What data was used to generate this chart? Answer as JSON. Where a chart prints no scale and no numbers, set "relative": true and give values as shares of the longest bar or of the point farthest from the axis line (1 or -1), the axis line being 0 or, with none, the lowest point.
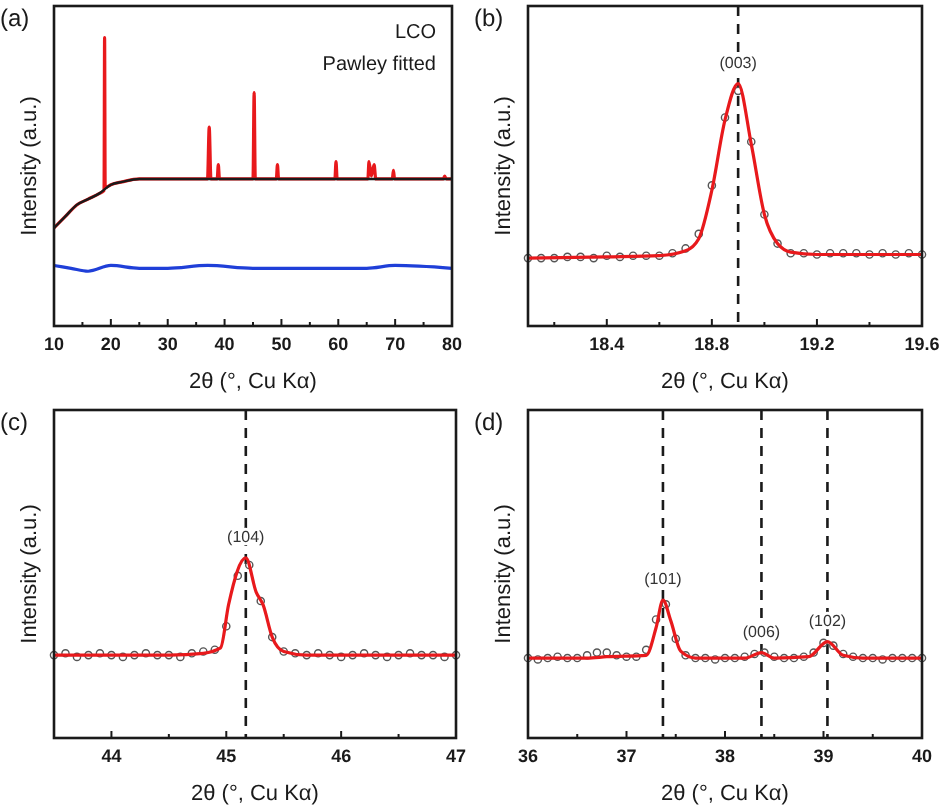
{
  "chart_data": [
    {
      "type": "line",
      "title": "(a)",
      "xlabel": "2θ (°, Cu Kα)",
      "ylabel": "Intensity (a.u.)",
      "relative": true,
      "tick_labels": "x",
      "xlim": [
        10,
        80
      ],
      "xticks": [
        10,
        {
          "value": 15,
          "label": null
        },
        20,
        {
          "value": 25,
          "label": null
        },
        30,
        {
          "value": 35,
          "label": null
        },
        40,
        {
          "value": 45,
          "label": null
        },
        50,
        {
          "value": 55,
          "label": null
        },
        60,
        {
          "value": 65,
          "label": null
        },
        70,
        {
          "value": 75,
          "label": null
        },
        80
      ],
      "annotations": [
        "LCO",
        "Pawley fitted"
      ],
      "series": [
        {
          "type": "line",
          "color": "#e8191c",
          "x": [
            10,
            12,
            14,
            16,
            18,
            18.8,
            18.9,
            19.0,
            20,
            22,
            25,
            30,
            37.0,
            37.3,
            37.6,
            38.7,
            38.9,
            39.1,
            45.0,
            45.2,
            45.4,
            49.1,
            49.3,
            49.5,
            59.4,
            59.6,
            59.8,
            65.2,
            65.4,
            65.8,
            66.3,
            66.6,
            69.5,
            69.7,
            69.9,
            78.5,
            78.7,
            79,
            80
          ],
          "values": [
            0.34,
            0.38,
            0.42,
            0.44,
            0.46,
            0.47,
            1,
            0.48,
            0.49,
            0.5,
            0.51,
            0.51,
            0.51,
            0.69,
            0.51,
            0.51,
            0.56,
            0.51,
            0.51,
            0.81,
            0.51,
            0.51,
            0.56,
            0.51,
            0.51,
            0.57,
            0.51,
            0.51,
            0.57,
            0.52,
            0.56,
            0.51,
            0.51,
            0.54,
            0.51,
            0.51,
            0.52,
            0.51,
            0.51
          ]
        },
        {
          "type": "line",
          "color": "#1a1a1a",
          "x": [
            10,
            12,
            14,
            16,
            18,
            20,
            22,
            25,
            30,
            40,
            50,
            60,
            70,
            80
          ],
          "values": [
            0.34,
            0.38,
            0.42,
            0.44,
            0.46,
            0.49,
            0.5,
            0.51,
            0.51,
            0.51,
            0.51,
            0.51,
            0.51,
            0.51
          ]
        },
        {
          "type": "line",
          "color": "#1f3fd8",
          "x": [
            10,
            13,
            16,
            20,
            25,
            30,
            37,
            45,
            55,
            65,
            70,
            80
          ],
          "values": [
            0.21,
            0.2,
            0.19,
            0.21,
            0.2,
            0.2,
            0.21,
            0.2,
            0.2,
            0.2,
            0.21,
            0.2
          ]
        }
      ]
    },
    {
      "type": "line",
      "title": "(b)",
      "xlabel": "2θ (°, Cu Kα)",
      "ylabel": "Intensity (a.u.)",
      "relative": true,
      "tick_labels": "x",
      "xlim": [
        18.1,
        19.6
      ],
      "xticks": [
        {
          "value": 18.2,
          "label": null
        },
        18.4,
        {
          "value": 18.6,
          "label": null
        },
        18.8,
        {
          "value": 19.0,
          "label": null
        },
        19.2,
        {
          "value": 19.4,
          "label": null
        },
        19.6
      ],
      "ref_lines": [
        {
          "axis": "x",
          "value": 18.9,
          "line_style": "dashed",
          "color": "#1a1a1a"
        }
      ],
      "annotations": [
        {
          "text": "(003)",
          "x": 18.9,
          "y": 1
        }
      ],
      "series": [
        {
          "type": "scatter",
          "marker": "circle",
          "color": "#555555",
          "x": [
            18.1,
            18.15,
            18.2,
            18.25,
            18.3,
            18.35,
            18.4,
            18.45,
            18.5,
            18.55,
            18.6,
            18.65,
            18.7,
            18.75,
            18.8,
            18.85,
            18.9,
            18.95,
            19.0,
            19.05,
            19.1,
            19.15,
            19.2,
            19.25,
            19.3,
            19.35,
            19.4,
            19.45,
            19.5,
            19.55,
            19.6
          ],
          "values": [
            0.28,
            0.28,
            0.28,
            0.285,
            0.285,
            0.28,
            0.29,
            0.285,
            0.29,
            0.29,
            0.29,
            0.3,
            0.32,
            0.38,
            0.58,
            0.86,
            0.97,
            0.76,
            0.46,
            0.34,
            0.3,
            0.3,
            0.295,
            0.3,
            0.3,
            0.3,
            0.295,
            0.3,
            0.295,
            0.3,
            0.295
          ]
        },
        {
          "type": "line",
          "color": "#e8191c",
          "x": [
            18.1,
            18.4,
            18.6,
            18.7,
            18.75,
            18.8,
            18.85,
            18.9,
            18.95,
            19.0,
            19.05,
            19.1,
            19.2,
            19.6
          ],
          "values": [
            0.28,
            0.285,
            0.29,
            0.31,
            0.36,
            0.56,
            0.85,
            1,
            0.75,
            0.46,
            0.34,
            0.305,
            0.295,
            0.295
          ]
        }
      ]
    },
    {
      "type": "line",
      "title": "(c)",
      "xlabel": "2θ (°, Cu Kα)",
      "ylabel": "Intensity (a.u.)",
      "relative": true,
      "tick_labels": "x",
      "xlim": [
        43.5,
        47
      ],
      "xticks": [
        44,
        {
          "value": 44.5,
          "label": null
        },
        45,
        {
          "value": 45.5,
          "label": null
        },
        46,
        {
          "value": 46.5,
          "label": null
        },
        47
      ],
      "ref_lines": [
        {
          "axis": "x",
          "value": 45.17,
          "line_style": "dashed",
          "color": "#1a1a1a"
        }
      ],
      "annotations": [
        {
          "text": "(104)",
          "x": 45.17,
          "y": 1
        }
      ],
      "series": [
        {
          "type": "scatter",
          "marker": "circle",
          "color": "#555555",
          "x": [
            43.5,
            43.6,
            43.7,
            43.8,
            43.9,
            44.0,
            44.1,
            44.2,
            44.3,
            44.4,
            44.5,
            44.6,
            44.7,
            44.8,
            44.9,
            45.0,
            45.1,
            45.2,
            45.3,
            45.4,
            45.5,
            45.6,
            45.7,
            45.8,
            45.9,
            46.0,
            46.1,
            46.2,
            46.3,
            46.4,
            46.5,
            46.6,
            46.7,
            46.8,
            46.9,
            47.0
          ],
          "values": [
            0.46,
            0.47,
            0.45,
            0.46,
            0.47,
            0.46,
            0.45,
            0.46,
            0.47,
            0.46,
            0.46,
            0.45,
            0.47,
            0.48,
            0.49,
            0.62,
            0.9,
            0.96,
            0.76,
            0.56,
            0.48,
            0.47,
            0.46,
            0.47,
            0.46,
            0.45,
            0.46,
            0.47,
            0.46,
            0.45,
            0.46,
            0.47,
            0.46,
            0.46,
            0.45,
            0.46
          ]
        },
        {
          "type": "line",
          "color": "#e8191c",
          "x": [
            43.5,
            44.5,
            44.8,
            44.95,
            45.02,
            45.17,
            45.26,
            45.32,
            45.4,
            45.5,
            45.7,
            47
          ],
          "values": [
            0.46,
            0.46,
            0.47,
            0.5,
            0.74,
            1,
            0.81,
            0.74,
            0.56,
            0.48,
            0.46,
            0.46
          ]
        }
      ]
    },
    {
      "type": "line",
      "title": "(d)",
      "xlabel": "2θ (°, Cu Kα)",
      "ylabel": "Intensity (a.u.)",
      "relative": true,
      "tick_labels": "x",
      "xlim": [
        36,
        40
      ],
      "xticks": [
        36,
        {
          "value": 36.5,
          "label": null
        },
        37,
        {
          "value": 37.5,
          "label": null
        },
        38,
        {
          "value": 38.5,
          "label": null
        },
        39,
        {
          "value": 39.5,
          "label": null
        },
        40
      ],
      "ref_lines": [
        {
          "axis": "x",
          "value": 37.37,
          "line_style": "dashed",
          "color": "#1a1a1a"
        },
        {
          "axis": "x",
          "value": 38.37,
          "line_style": "dashed",
          "color": "#1a1a1a"
        },
        {
          "axis": "x",
          "value": 39.04,
          "line_style": "dashed",
          "color": "#1a1a1a"
        }
      ],
      "annotations": [
        {
          "text": "(101)",
          "x": 37.37,
          "y": 1
        },
        {
          "text": "(006)",
          "x": 38.37,
          "y": 0.62
        },
        {
          "text": "(102)",
          "x": 39.04,
          "y": 0.7
        }
      ],
      "series": [
        {
          "type": "scatter",
          "marker": "circle",
          "color": "#555555",
          "x": [
            36.0,
            36.1,
            36.2,
            36.3,
            36.4,
            36.5,
            36.6,
            36.7,
            36.8,
            36.9,
            37.0,
            37.1,
            37.2,
            37.3,
            37.4,
            37.5,
            37.6,
            37.7,
            37.8,
            37.9,
            38.0,
            38.1,
            38.2,
            38.3,
            38.4,
            38.5,
            38.6,
            38.7,
            38.8,
            38.9,
            39.0,
            39.1,
            39.2,
            39.3,
            39.4,
            39.5,
            39.6,
            39.7,
            39.8,
            39.9,
            40.0
          ],
          "values": [
            0.58,
            0.57,
            0.58,
            0.59,
            0.58,
            0.58,
            0.6,
            0.62,
            0.62,
            0.6,
            0.59,
            0.59,
            0.64,
            0.86,
            0.97,
            0.72,
            0.6,
            0.58,
            0.58,
            0.57,
            0.58,
            0.58,
            0.59,
            0.61,
            0.62,
            0.59,
            0.58,
            0.58,
            0.59,
            0.62,
            0.69,
            0.67,
            0.61,
            0.59,
            0.58,
            0.58,
            0.57,
            0.58,
            0.58,
            0.58,
            0.58
          ]
        },
        {
          "type": "line",
          "color": "#e8191c",
          "x": [
            36,
            36.6,
            36.8,
            37.2,
            37.3,
            37.37,
            37.45,
            37.55,
            37.7,
            38.2,
            38.37,
            38.5,
            38.85,
            39.04,
            39.2,
            39.4,
            40
          ],
          "values": [
            0.58,
            0.58,
            0.59,
            0.6,
            0.8,
            1,
            0.85,
            0.63,
            0.58,
            0.58,
            0.62,
            0.58,
            0.59,
            0.7,
            0.6,
            0.58,
            0.58
          ]
        }
      ]
    }
  ]
}
